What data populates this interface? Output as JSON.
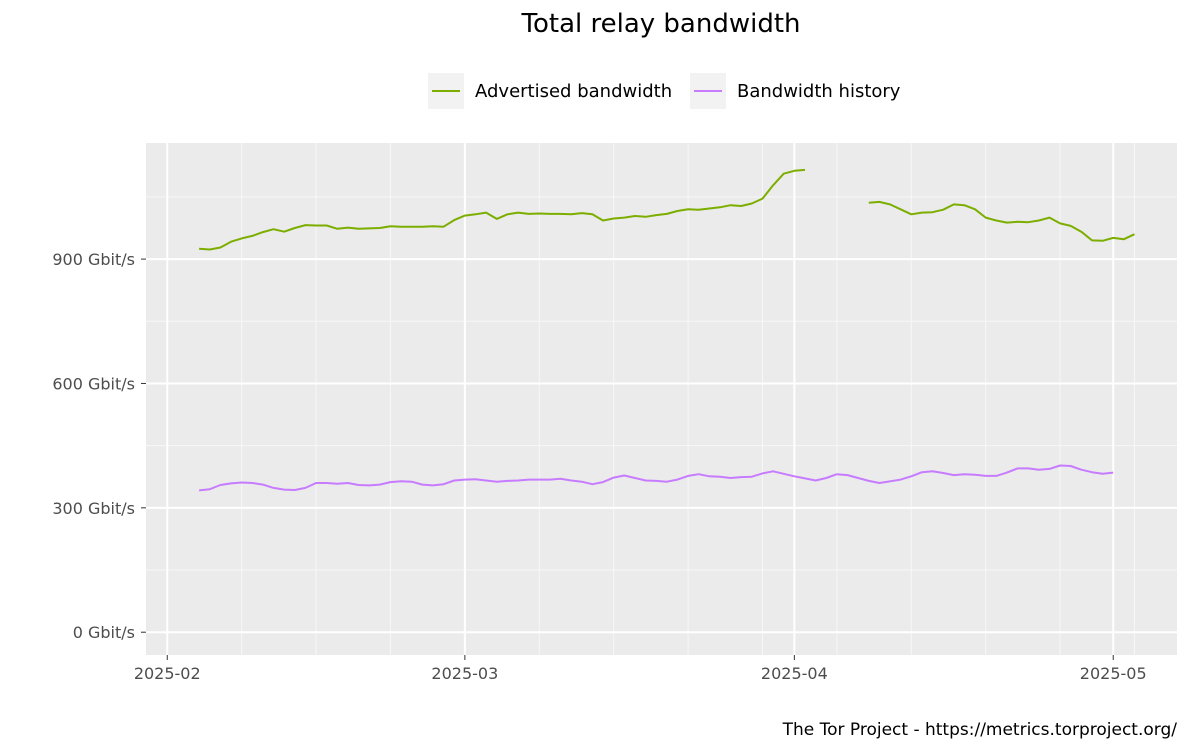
{
  "chart_data": {
    "type": "line",
    "title": "Total relay bandwidth",
    "caption": "The Tor Project - https://metrics.torproject.org/",
    "ylim": [
      -55,
      1180
    ],
    "xlim": [
      "2025-01-30",
      "2025-05-07"
    ],
    "y_ticks": [
      {
        "value": 0,
        "label": "0 Gbit/s"
      },
      {
        "value": 300,
        "label": "300 Gbit/s"
      },
      {
        "value": 600,
        "label": "600 Gbit/s"
      },
      {
        "value": 900,
        "label": "900 Gbit/s"
      }
    ],
    "x_ticks": [
      {
        "value": "2025-02-01",
        "label": "2025-02"
      },
      {
        "value": "2025-03-01",
        "label": "2025-03"
      },
      {
        "value": "2025-04-01",
        "label": "2025-04"
      },
      {
        "value": "2025-05-01",
        "label": "2025-05"
      }
    ],
    "grid": true,
    "legend_position": "top",
    "series": [
      {
        "name": "Advertised bandwidth",
        "color": "#7cae00",
        "points": [
          [
            "2025-02-04",
            925
          ],
          [
            "2025-02-05",
            923
          ],
          [
            "2025-02-06",
            928
          ],
          [
            "2025-02-07",
            942
          ],
          [
            "2025-02-08",
            950
          ],
          [
            "2025-02-09",
            956
          ],
          [
            "2025-02-10",
            965
          ],
          [
            "2025-02-11",
            972
          ],
          [
            "2025-02-12",
            966
          ],
          [
            "2025-02-13",
            975
          ],
          [
            "2025-02-14",
            982
          ],
          [
            "2025-02-15",
            981
          ],
          [
            "2025-02-16",
            981
          ],
          [
            "2025-02-17",
            973
          ],
          [
            "2025-02-18",
            976
          ],
          [
            "2025-02-19",
            973
          ],
          [
            "2025-02-20",
            974
          ],
          [
            "2025-02-21",
            975
          ],
          [
            "2025-02-22",
            979
          ],
          [
            "2025-02-23",
            978
          ],
          [
            "2025-02-24",
            978
          ],
          [
            "2025-02-25",
            978
          ],
          [
            "2025-02-26",
            979
          ],
          [
            "2025-02-27",
            978
          ],
          [
            "2025-02-28",
            994
          ],
          [
            "2025-03-01",
            1005
          ],
          [
            "2025-03-02",
            1008
          ],
          [
            "2025-03-03",
            1012
          ],
          [
            "2025-03-04",
            997
          ],
          [
            "2025-03-05",
            1008
          ],
          [
            "2025-03-06",
            1012
          ],
          [
            "2025-03-07",
            1009
          ],
          [
            "2025-03-08",
            1010
          ],
          [
            "2025-03-09",
            1009
          ],
          [
            "2025-03-10",
            1009
          ],
          [
            "2025-03-11",
            1008
          ],
          [
            "2025-03-12",
            1011
          ],
          [
            "2025-03-13",
            1008
          ],
          [
            "2025-03-14",
            993
          ],
          [
            "2025-03-15",
            998
          ],
          [
            "2025-03-16",
            1000
          ],
          [
            "2025-03-17",
            1004
          ],
          [
            "2025-03-18",
            1002
          ],
          [
            "2025-03-19",
            1006
          ],
          [
            "2025-03-20",
            1009
          ],
          [
            "2025-03-21",
            1016
          ],
          [
            "2025-03-22",
            1020
          ],
          [
            "2025-03-23",
            1019
          ],
          [
            "2025-03-24",
            1022
          ],
          [
            "2025-03-25",
            1025
          ],
          [
            "2025-03-26",
            1030
          ],
          [
            "2025-03-27",
            1028
          ],
          [
            "2025-03-28",
            1034
          ],
          [
            "2025-03-29",
            1046
          ],
          [
            "2025-03-30",
            1078
          ],
          [
            "2025-03-31",
            1106
          ],
          [
            "2025-04-01",
            1113
          ],
          [
            "2025-04-02",
            1115
          ],
          null,
          [
            "2025-04-08",
            1036
          ],
          [
            "2025-04-09",
            1038
          ],
          [
            "2025-04-10",
            1032
          ],
          [
            "2025-04-11",
            1020
          ],
          [
            "2025-04-12",
            1008
          ],
          [
            "2025-04-13",
            1012
          ],
          [
            "2025-04-14",
            1013
          ],
          [
            "2025-04-15",
            1019
          ],
          [
            "2025-04-16",
            1032
          ],
          [
            "2025-04-17",
            1030
          ],
          [
            "2025-04-18",
            1020
          ],
          [
            "2025-04-19",
            1000
          ],
          [
            "2025-04-20",
            993
          ],
          [
            "2025-04-21",
            988
          ],
          [
            "2025-04-22",
            990
          ],
          [
            "2025-04-23",
            989
          ],
          [
            "2025-04-24",
            993
          ],
          [
            "2025-04-25",
            1000
          ],
          [
            "2025-04-26",
            986
          ],
          [
            "2025-04-27",
            980
          ],
          [
            "2025-04-28",
            966
          ],
          [
            "2025-04-29",
            945
          ],
          [
            "2025-04-30",
            944
          ],
          [
            "2025-05-01",
            951
          ],
          [
            "2025-05-02",
            948
          ],
          [
            "2025-05-03",
            960
          ]
        ]
      },
      {
        "name": "Bandwidth history",
        "color": "#c77cff",
        "points": [
          [
            "2025-02-04",
            342
          ],
          [
            "2025-02-05",
            345
          ],
          [
            "2025-02-06",
            355
          ],
          [
            "2025-02-07",
            359
          ],
          [
            "2025-02-08",
            361
          ],
          [
            "2025-02-09",
            360
          ],
          [
            "2025-02-10",
            356
          ],
          [
            "2025-02-11",
            348
          ],
          [
            "2025-02-12",
            344
          ],
          [
            "2025-02-13",
            343
          ],
          [
            "2025-02-14",
            348
          ],
          [
            "2025-02-15",
            360
          ],
          [
            "2025-02-16",
            360
          ],
          [
            "2025-02-17",
            358
          ],
          [
            "2025-02-18",
            360
          ],
          [
            "2025-02-19",
            355
          ],
          [
            "2025-02-20",
            354
          ],
          [
            "2025-02-21",
            356
          ],
          [
            "2025-02-22",
            362
          ],
          [
            "2025-02-23",
            364
          ],
          [
            "2025-02-24",
            363
          ],
          [
            "2025-02-25",
            356
          ],
          [
            "2025-02-26",
            354
          ],
          [
            "2025-02-27",
            357
          ],
          [
            "2025-02-28",
            366
          ],
          [
            "2025-03-01",
            368
          ],
          [
            "2025-03-02",
            369
          ],
          [
            "2025-03-03",
            366
          ],
          [
            "2025-03-04",
            363
          ],
          [
            "2025-03-05",
            365
          ],
          [
            "2025-03-06",
            366
          ],
          [
            "2025-03-07",
            368
          ],
          [
            "2025-03-08",
            368
          ],
          [
            "2025-03-09",
            368
          ],
          [
            "2025-03-10",
            370
          ],
          [
            "2025-03-11",
            366
          ],
          [
            "2025-03-12",
            363
          ],
          [
            "2025-03-13",
            357
          ],
          [
            "2025-03-14",
            362
          ],
          [
            "2025-03-15",
            373
          ],
          [
            "2025-03-16",
            378
          ],
          [
            "2025-03-17",
            372
          ],
          [
            "2025-03-18",
            366
          ],
          [
            "2025-03-19",
            365
          ],
          [
            "2025-03-20",
            363
          ],
          [
            "2025-03-21",
            368
          ],
          [
            "2025-03-22",
            377
          ],
          [
            "2025-03-23",
            381
          ],
          [
            "2025-03-24",
            376
          ],
          [
            "2025-03-25",
            375
          ],
          [
            "2025-03-26",
            372
          ],
          [
            "2025-03-27",
            374
          ],
          [
            "2025-03-28",
            375
          ],
          [
            "2025-03-29",
            383
          ],
          [
            "2025-03-30",
            388
          ],
          [
            "2025-03-31",
            382
          ],
          [
            "2025-04-01",
            376
          ],
          [
            "2025-04-02",
            371
          ],
          [
            "2025-04-03",
            366
          ],
          [
            "2025-04-04",
            372
          ],
          [
            "2025-04-05",
            381
          ],
          [
            "2025-04-06",
            379
          ],
          [
            "2025-04-07",
            372
          ],
          [
            "2025-04-08",
            365
          ],
          [
            "2025-04-09",
            360
          ],
          [
            "2025-04-10",
            364
          ],
          [
            "2025-04-11",
            368
          ],
          [
            "2025-04-12",
            376
          ],
          [
            "2025-04-13",
            386
          ],
          [
            "2025-04-14",
            388
          ],
          [
            "2025-04-15",
            384
          ],
          [
            "2025-04-16",
            379
          ],
          [
            "2025-04-17",
            381
          ],
          [
            "2025-04-18",
            380
          ],
          [
            "2025-04-19",
            377
          ],
          [
            "2025-04-20",
            377
          ],
          [
            "2025-04-21",
            385
          ],
          [
            "2025-04-22",
            395
          ],
          [
            "2025-04-23",
            395
          ],
          [
            "2025-04-24",
            392
          ],
          [
            "2025-04-25",
            394
          ],
          [
            "2025-04-26",
            402
          ],
          [
            "2025-04-27",
            401
          ],
          [
            "2025-04-28",
            392
          ],
          [
            "2025-04-29",
            386
          ],
          [
            "2025-04-30",
            382
          ],
          [
            "2025-05-01",
            385
          ]
        ]
      }
    ]
  }
}
